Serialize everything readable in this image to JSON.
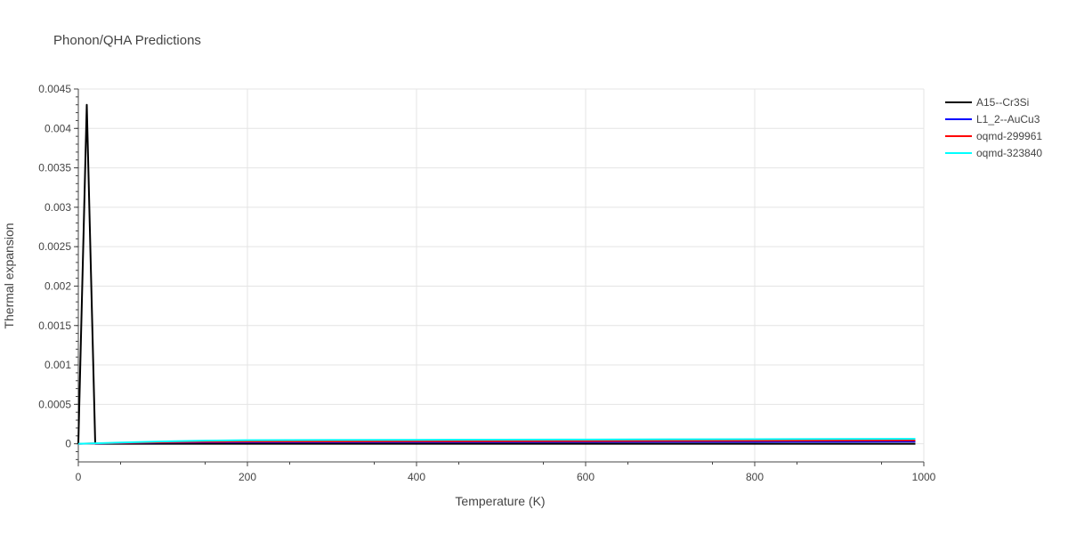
{
  "chart_data": {
    "type": "line",
    "title": "Phonon/QHA Predictions",
    "xlabel": "Temperature (K)",
    "ylabel": "Thermal expansion",
    "xlim": [
      0,
      1000
    ],
    "ylim": [
      -0.00023,
      0.0045
    ],
    "x_ticks": [
      0,
      200,
      400,
      600,
      800,
      1000
    ],
    "x_tick_labels": [
      "0",
      "200",
      "400",
      "600",
      "800",
      "1000"
    ],
    "y_ticks": [
      0,
      0.0005,
      0.001,
      0.0015,
      0.002,
      0.0025,
      0.003,
      0.0035,
      0.004,
      0.0045
    ],
    "y_tick_labels": [
      "0",
      "0.0005",
      "0.001",
      "0.0015",
      "0.002",
      "0.0025",
      "0.003",
      "0.0035",
      "0.004",
      "0.0045"
    ],
    "grid": true,
    "legend_position": "top-right",
    "series": [
      {
        "name": "A15--Cr3Si",
        "color": "#000000",
        "x": [
          0,
          10,
          20,
          50,
          100,
          200,
          300,
          400,
          500,
          600,
          700,
          800,
          900,
          990
        ],
        "y": [
          0,
          0.0043,
          0,
          0,
          0,
          0,
          0,
          0,
          0,
          0,
          0,
          0,
          0,
          0
        ]
      },
      {
        "name": "L1_2--AuCu3",
        "color": "#0000ff",
        "x": [
          0,
          20,
          50,
          100,
          150,
          200,
          300,
          400,
          500,
          600,
          700,
          800,
          900,
          990
        ],
        "y": [
          0,
          3e-06,
          8e-06,
          1.5e-05,
          1.8e-05,
          2e-05,
          2.1e-05,
          2.2e-05,
          2.3e-05,
          2.4e-05,
          2.5e-05,
          2.6e-05,
          2.7e-05,
          2.8e-05
        ]
      },
      {
        "name": "oqmd-299961",
        "color": "#ff0000",
        "x": [
          0,
          20,
          50,
          100,
          150,
          200,
          300,
          400,
          500,
          600,
          700,
          800,
          900,
          990
        ],
        "y": [
          0,
          4e-06,
          1e-05,
          2e-05,
          2.5e-05,
          2.8e-05,
          3e-05,
          3.2e-05,
          3.4e-05,
          3.6e-05,
          3.8e-05,
          4e-05,
          4.2e-05,
          4.4e-05
        ]
      },
      {
        "name": "oqmd-323840",
        "color": "#00ffff",
        "x": [
          0,
          20,
          50,
          100,
          150,
          200,
          300,
          400,
          500,
          600,
          700,
          800,
          900,
          990
        ],
        "y": [
          0,
          6e-06,
          1.5e-05,
          3e-05,
          4e-05,
          4.5e-05,
          4.8e-05,
          5e-05,
          5.2e-05,
          5.4e-05,
          5.6e-05,
          5.8e-05,
          6e-05,
          6.2e-05
        ]
      }
    ]
  }
}
